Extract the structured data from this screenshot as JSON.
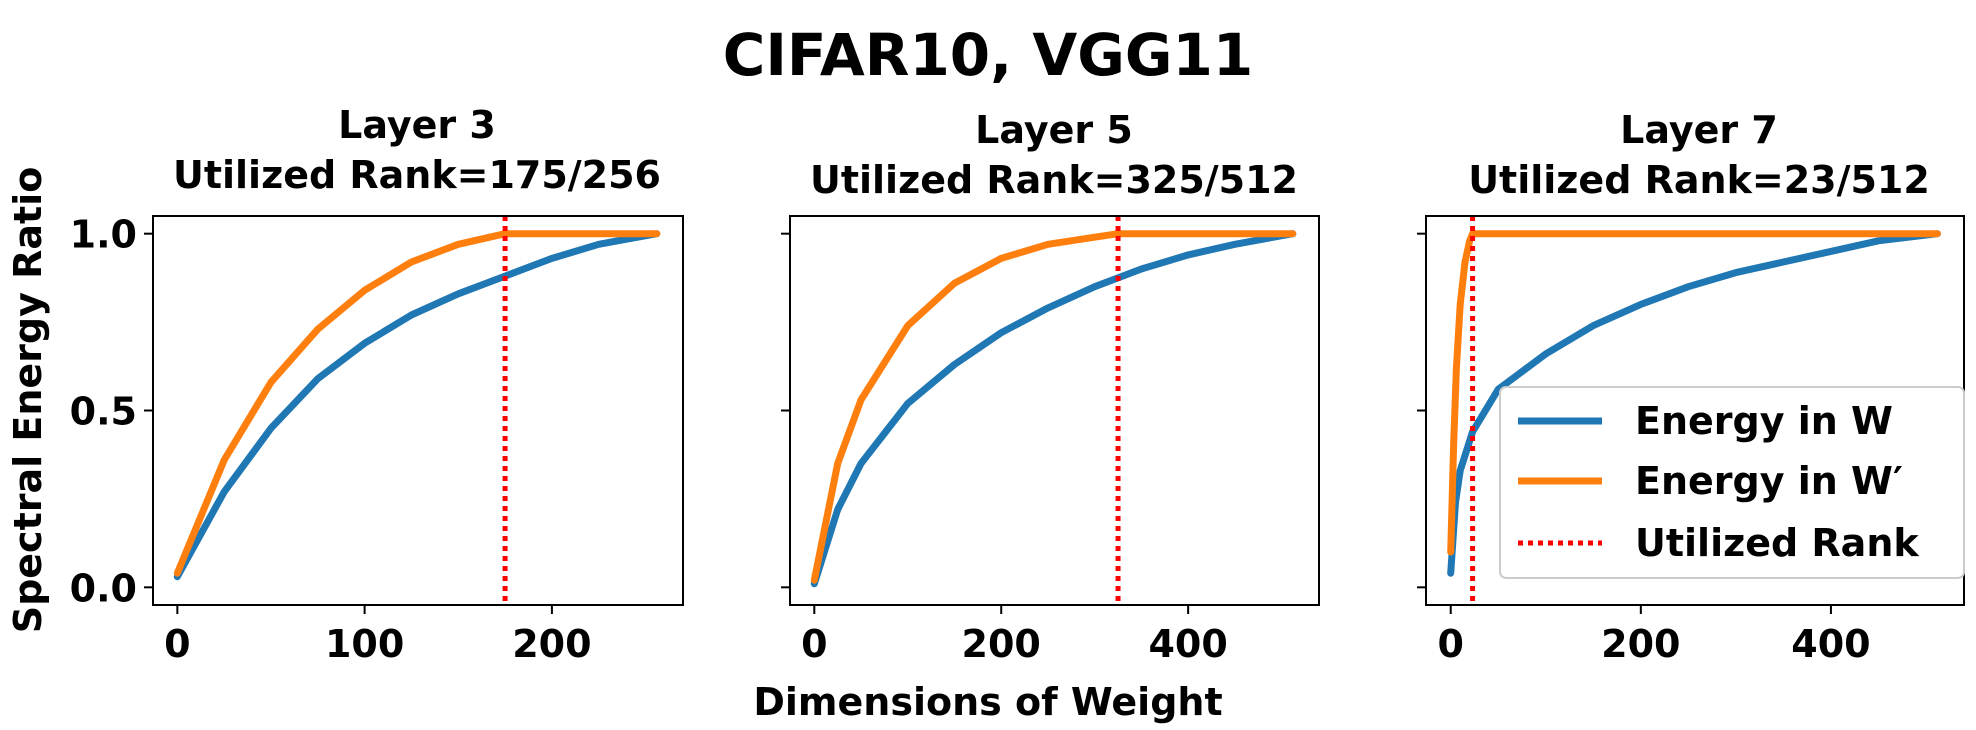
{
  "chart_data": {
    "type": "line",
    "title": "CIFAR10, VGG11",
    "xlabel": "Dimensions of Weight",
    "ylabel": "Spectral Energy Ratio",
    "grid": false,
    "legend": {
      "location": "lower-right of Layer 7 panel",
      "entries": [
        "Energy in W",
        "Energy in W′",
        "Utilized Rank"
      ]
    },
    "colors": {
      "w": "#1f77b4",
      "wprime": "#ff7f0e",
      "rank": "#ff0000"
    },
    "yticks": [
      "0.0",
      "0.5",
      "1.0"
    ],
    "ylim": [
      -0.05,
      1.05
    ],
    "panels": [
      {
        "title_line1": "Layer 3",
        "title_line2": "Utilized Rank=175/256",
        "xlim": [
          -13,
          270
        ],
        "xticks": [
          0,
          100,
          200
        ],
        "xtick_labels": [
          "0",
          "100",
          "200"
        ],
        "utilized_rank": 175,
        "series": [
          {
            "name": "Energy in W",
            "x": [
              0,
              25,
              50,
              75,
              100,
              125,
              150,
              175,
              200,
              225,
              256
            ],
            "y": [
              0.03,
              0.27,
              0.45,
              0.59,
              0.69,
              0.77,
              0.83,
              0.88,
              0.93,
              0.97,
              1.0
            ]
          },
          {
            "name": "Energy in W′",
            "x": [
              0,
              25,
              50,
              75,
              100,
              125,
              150,
              175,
              200,
              256
            ],
            "y": [
              0.04,
              0.36,
              0.58,
              0.73,
              0.84,
              0.92,
              0.97,
              1.0,
              1.0,
              1.0
            ]
          }
        ]
      },
      {
        "title_line1": "Layer 5",
        "title_line2": "Utilized Rank=325/512",
        "xlim": [
          -26,
          540
        ],
        "xticks": [
          0,
          200,
          400
        ],
        "xtick_labels": [
          "0",
          "200",
          "400"
        ],
        "utilized_rank": 325,
        "series": [
          {
            "name": "Energy in W",
            "x": [
              0,
              25,
              50,
              100,
              150,
              200,
              250,
              300,
              350,
              400,
              450,
              512
            ],
            "y": [
              0.01,
              0.22,
              0.35,
              0.52,
              0.63,
              0.72,
              0.79,
              0.85,
              0.9,
              0.94,
              0.97,
              1.0
            ]
          },
          {
            "name": "Energy in W′",
            "x": [
              0,
              25,
              50,
              100,
              150,
              200,
              250,
              300,
              325,
              400,
              512
            ],
            "y": [
              0.02,
              0.35,
              0.53,
              0.74,
              0.86,
              0.93,
              0.97,
              0.99,
              1.0,
              1.0,
              1.0
            ]
          }
        ]
      },
      {
        "title_line1": "Layer 7",
        "title_line2": "Utilized Rank=23/512",
        "xlim": [
          -26,
          540
        ],
        "xticks": [
          0,
          200,
          400
        ],
        "xtick_labels": [
          "0",
          "200",
          "400"
        ],
        "utilized_rank": 23,
        "series": [
          {
            "name": "Energy in W",
            "x": [
              0,
              5,
              10,
              23,
              50,
              100,
              150,
              200,
              250,
              300,
              350,
              400,
              450,
              512
            ],
            "y": [
              0.04,
              0.24,
              0.33,
              0.44,
              0.56,
              0.66,
              0.74,
              0.8,
              0.85,
              0.89,
              0.92,
              0.95,
              0.98,
              1.0
            ]
          },
          {
            "name": "Energy in W′",
            "x": [
              0,
              3,
              6,
              10,
              15,
              20,
              23,
              30,
              100,
              512
            ],
            "y": [
              0.1,
              0.4,
              0.62,
              0.8,
              0.92,
              0.98,
              1.0,
              1.0,
              1.0,
              1.0
            ]
          }
        ]
      }
    ]
  }
}
